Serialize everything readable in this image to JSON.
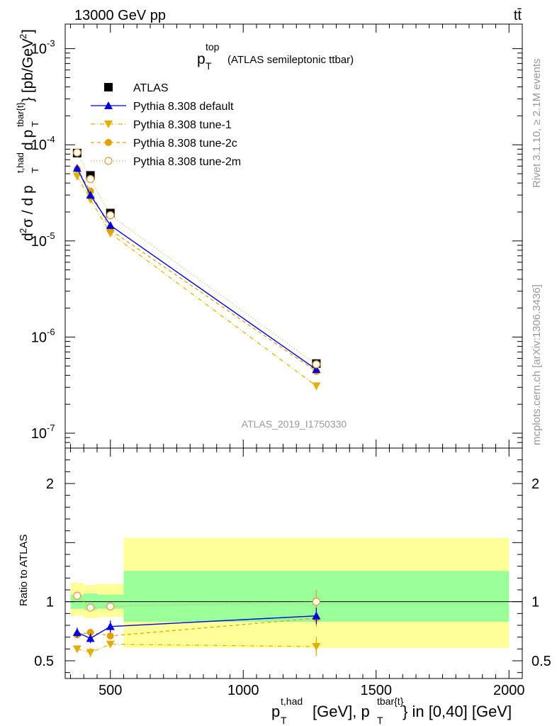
{
  "header": {
    "left": "13000 GeV pp",
    "right": "tt̄"
  },
  "side_labels": {
    "rivet": "Rivet 3.1.10, ≥ 2.1M events",
    "mcplots": "mcplots.cern.ch [arXiv:1306.3436]"
  },
  "colors": {
    "data": "#000000",
    "default": "#0000dd",
    "tune1": "#e0b000",
    "tune2c": "#e0a000",
    "tune2m": "#e0a040",
    "band_stat": "#99ff99",
    "band_total": "#ffff99"
  },
  "chart_data": {
    "type": "line",
    "title": "p_T^top (ATLAS semileptonic ttbar)",
    "analysis_id": "ATLAS_2019_I1750330",
    "xlabel": "p_T^{t,had} [GeV], p_T^{tbar{t}} in [0,40] [GeV]",
    "xlim": [
      330,
      2050
    ],
    "x_ticks": [
      500,
      1000,
      1500,
      2000
    ],
    "main": {
      "ylabel": "d²σ / d p_T^{t,had} d p_T^{tbar{t}} [pb/GeV²]",
      "yscale": "log",
      "ylim": [
        7e-08,
        0.0018
      ],
      "y_ticks": [
        {
          "value": 1e-07,
          "label": "10^-7"
        },
        {
          "value": 1e-06,
          "label": "10^-6"
        },
        {
          "value": 1e-05,
          "label": "10^-5"
        },
        {
          "value": 0.0001,
          "label": "10^-4"
        },
        {
          "value": 0.001,
          "label": "10^-3"
        }
      ]
    },
    "ratio": {
      "ylabel": "Ratio to ATLAS",
      "ylim": [
        0.35,
        2.3
      ],
      "y_ticks": [
        0.5,
        1,
        2
      ]
    },
    "legend": {
      "placement": "upper-left",
      "entries": [
        "ATLAS",
        "Pythia 8.308 default",
        "Pythia 8.308 tune-1",
        "Pythia 8.308 tune-2c",
        "Pythia 8.308 tune-2m"
      ]
    },
    "x": [
      375,
      425,
      500,
      1275
    ],
    "bins": [
      [
        350,
        400
      ],
      [
        400,
        450
      ],
      [
        450,
        550
      ],
      [
        550,
        2000
      ]
    ],
    "series": [
      {
        "name": "ATLAS",
        "key": "data",
        "values": [
          8.2e-05,
          4.8e-05,
          1.95e-05,
          5.3e-07
        ]
      },
      {
        "name": "Pythia 8.308 default",
        "key": "default",
        "values": [
          5.7e-05,
          3e-05,
          1.45e-05,
          4.6e-07
        ]
      },
      {
        "name": "Pythia 8.308 tune-1",
        "key": "tune1",
        "values": [
          4.7e-05,
          2.7e-05,
          1.2e-05,
          3.1e-07
        ]
      },
      {
        "name": "Pythia 8.308 tune-2c",
        "key": "tune2c",
        "values": [
          5.6e-05,
          3.3e-05,
          1.3e-05,
          4.4e-07
        ]
      },
      {
        "name": "Pythia 8.308 tune-2m",
        "key": "tune2m",
        "values": [
          8.3e-05,
          4.4e-05,
          1.85e-05,
          5.2e-07
        ]
      }
    ],
    "ratios": [
      {
        "key": "default",
        "values": [
          0.74,
          0.69,
          0.79,
          0.88
        ],
        "err": [
          0.04,
          0.04,
          0.05,
          0.07
        ]
      },
      {
        "key": "tune1",
        "values": [
          0.6,
          0.57,
          0.64,
          0.62
        ],
        "err": [
          0.03,
          0.04,
          0.03,
          0.08
        ]
      },
      {
        "key": "tune2c",
        "values": [
          0.72,
          0.74,
          0.71,
          0.86
        ],
        "err": [
          0.03,
          0.03,
          0.03,
          0.07
        ]
      },
      {
        "key": "tune2m",
        "values": [
          1.05,
          0.95,
          0.96,
          1.0
        ],
        "err": [
          0.02,
          0.02,
          0.02,
          0.1
        ]
      }
    ],
    "bands": {
      "stat": [
        [
          0.94,
          1.06
        ],
        [
          0.93,
          1.07
        ],
        [
          0.94,
          1.06
        ],
        [
          0.83,
          1.26
        ]
      ],
      "total": [
        [
          0.88,
          1.16
        ],
        [
          0.86,
          1.14
        ],
        [
          0.87,
          1.15
        ],
        [
          0.61,
          1.54
        ]
      ]
    }
  }
}
